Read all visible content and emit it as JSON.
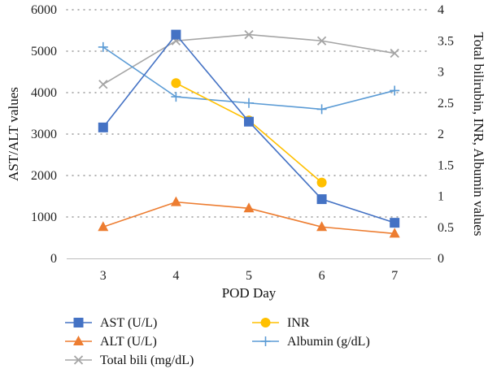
{
  "chart_data": {
    "type": "line",
    "x": [
      3,
      4,
      5,
      6,
      7
    ],
    "xlabel": "POD Day",
    "ylabel_left": "AST/ALT values",
    "ylabel_right": "Total bilirubin, INR, Albumin values",
    "ylim_left": [
      0,
      6000
    ],
    "ylim_right": [
      0,
      4
    ],
    "yticks_left": [
      "0",
      "1000",
      "2000",
      "3000",
      "4000",
      "5000",
      "6000"
    ],
    "yticks_right": [
      "0",
      "0.5",
      "1",
      "1.5",
      "2",
      "2.5",
      "3",
      "3.5",
      "4"
    ],
    "grid": "horizontal dotted",
    "legend_position": "bottom",
    "series": [
      {
        "name": "AST (U/L)",
        "axis": "left",
        "color": "#4472C4",
        "marker": "square",
        "values": [
          3160,
          5400,
          3300,
          1430,
          860
        ]
      },
      {
        "name": "ALT (U/L)",
        "axis": "left",
        "color": "#ED7D31",
        "marker": "triangle",
        "values": [
          760,
          1360,
          1210,
          760,
          600
        ]
      },
      {
        "name": "Total bili (mg/dL)",
        "axis": "right",
        "color": "#A5A5A5",
        "marker": "x",
        "values": [
          2.8,
          3.5,
          3.6,
          3.5,
          3.3
        ]
      },
      {
        "name": "INR",
        "axis": "right",
        "color": "#FFC000",
        "marker": "circle",
        "values": [
          null,
          2.82,
          2.22,
          1.22,
          null
        ]
      },
      {
        "name": "Albumin (g/dL)",
        "axis": "right",
        "color": "#5B9BD5",
        "marker": "plus",
        "values": [
          3.4,
          2.6,
          2.5,
          2.4,
          2.7
        ]
      }
    ]
  }
}
